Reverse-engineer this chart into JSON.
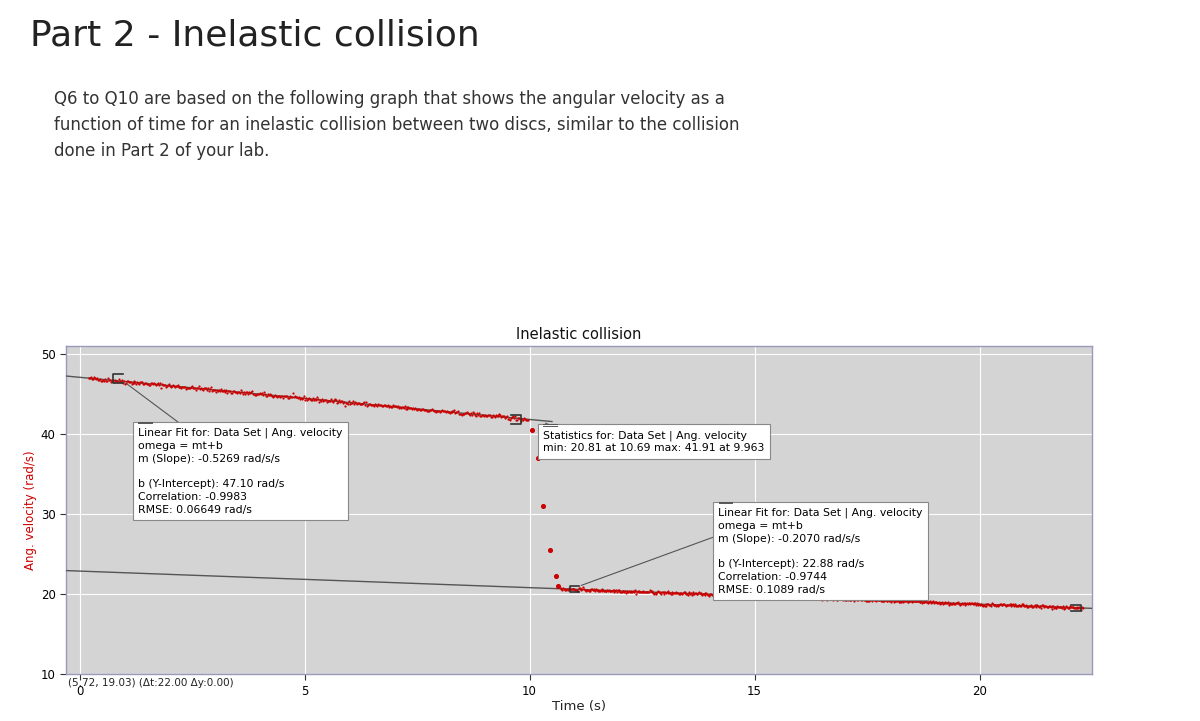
{
  "title_main": "Part 2 - Inelastic collision",
  "subtitle_lines": [
    "Q6 to Q10 are based on the following graph that shows the angular velocity as a",
    "function of time for an inelastic collision between two discs, similar to the collision",
    "done in Part 2 of your lab."
  ],
  "graph_title": "Inelastic collision",
  "xlabel": "Time (s)",
  "ylabel": "Ang. velocity (rad/s)",
  "xlim": [
    -0.3,
    22.5
  ],
  "ylim": [
    10,
    51
  ],
  "xticks": [
    0,
    5,
    10,
    15,
    20
  ],
  "yticks": [
    10,
    20,
    30,
    40,
    50
  ],
  "seg1_t_start": 0.2,
  "seg1_t_end": 9.963,
  "seg1_slope": -0.5269,
  "seg1_intercept": 47.1,
  "seg2_t_start": 10.69,
  "seg2_t_end": 22.3,
  "seg2_slope": -0.207,
  "seg2_intercept": 22.88,
  "dot_color": "#cc0000",
  "dot_size": 2.5,
  "noise_std1": 0.13,
  "noise_std2": 0.1,
  "fit_line_color": "#555555",
  "plot_bg_color": "#d4d4d4",
  "grid_color": "#bbbbbb",
  "border_color": "#9999bb",
  "box1_text": "Linear Fit for: Data Set | Ang. velocity\nomega = mt+b\nm (Slope): -0.5269 rad/s/s\n\nb (Y-Intercept): 47.10 rad/s\nCorrelation: -0.9983\nRMSE: 0.06649 rad/s",
  "box2_text": "Statistics for: Data Set | Ang. velocity\nmin: 20.81 at 10.69 max: 41.91 at 9.963",
  "box3_text": "Linear Fit for: Data Set | Ang. velocity\nomega = mt+b\nm (Slope): -0.2070 rad/s/s\n\nb (Y-Intercept): 22.88 rad/s\nCorrelation: -0.9744\nRMSE: 0.1089 rad/s",
  "bottom_annotation": "(5.72, 19.03) (Δt:22.00 Δy:0.00)",
  "fig_width": 12.0,
  "fig_height": 7.21
}
